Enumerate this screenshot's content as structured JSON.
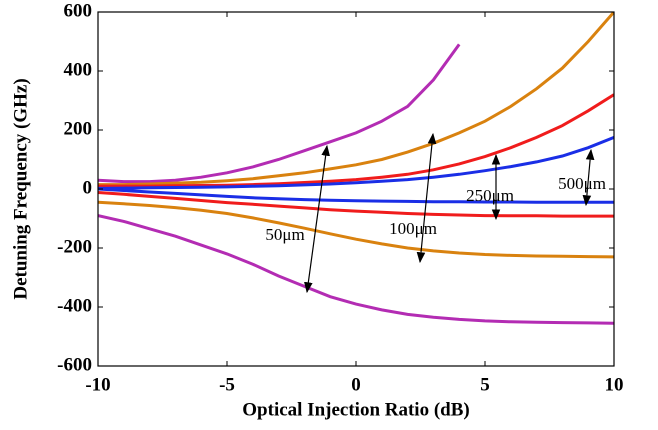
{
  "chart_data": {
    "type": "line",
    "xlabel": "Optical Injection Ratio (dB)",
    "ylabel": "Detuning Frequency (GHz)",
    "x": [
      -10,
      -9,
      -8,
      -7,
      -6,
      -5,
      -4,
      -3,
      -2,
      -1,
      0,
      1,
      2,
      3,
      4,
      5,
      6,
      7,
      8,
      9,
      10
    ],
    "xlim": [
      -10,
      10
    ],
    "xticks": [
      -10,
      -5,
      0,
      5,
      10
    ],
    "ylim": [
      -600,
      600
    ],
    "yticks": [
      -600,
      -400,
      -200,
      0,
      200,
      400,
      600
    ],
    "grid": false,
    "series": [
      {
        "color": "#b32cb3",
        "values": [
          30,
          25,
          25,
          30,
          40,
          55,
          75,
          100,
          130,
          160,
          190,
          230,
          280,
          370,
          490,
          null,
          null,
          null,
          null,
          null,
          null
        ]
      },
      {
        "color": "#d9820f",
        "values": [
          15,
          15,
          17,
          20,
          23,
          28,
          35,
          45,
          55,
          68,
          82,
          100,
          125,
          155,
          190,
          230,
          280,
          340,
          410,
          500,
          600
        ]
      },
      {
        "color": "#f01c1c",
        "values": [
          10,
          10,
          10,
          11,
          12,
          13,
          15,
          18,
          22,
          26,
          32,
          40,
          50,
          65,
          85,
          110,
          140,
          175,
          215,
          265,
          320
        ]
      },
      {
        "color": "#1a2ee6",
        "values": [
          2,
          3,
          4,
          5,
          6,
          7,
          9,
          11,
          14,
          17,
          21,
          26,
          32,
          40,
          50,
          62,
          76,
          92,
          112,
          140,
          175
        ]
      },
      {
        "color": "#1a2ee6",
        "values": [
          0,
          -5,
          -10,
          -15,
          -20,
          -25,
          -30,
          -33,
          -36,
          -38,
          -40,
          -41,
          -42,
          -43,
          -43,
          -44,
          -44,
          -45,
          -45,
          -45,
          -45
        ]
      },
      {
        "color": "#f01c1c",
        "values": [
          -12,
          -18,
          -25,
          -32,
          -39,
          -46,
          -52,
          -58,
          -64,
          -70,
          -75,
          -79,
          -83,
          -86,
          -88,
          -90,
          -91,
          -91,
          -92,
          -92,
          -92
        ]
      },
      {
        "color": "#d9820f",
        "values": [
          -45,
          -50,
          -56,
          -63,
          -72,
          -83,
          -98,
          -115,
          -133,
          -152,
          -170,
          -186,
          -200,
          -210,
          -217,
          -222,
          -225,
          -227,
          -228,
          -229,
          -230
        ]
      },
      {
        "color": "#b32cb3",
        "values": [
          -90,
          -110,
          -135,
          -160,
          -190,
          -220,
          -255,
          -295,
          -330,
          -365,
          -390,
          -410,
          -425,
          -435,
          -442,
          -447,
          -450,
          -452,
          -453,
          -454,
          -455
        ]
      }
    ],
    "annotations": [
      "50μm",
      "100μm",
      "250μm",
      "500μm"
    ]
  }
}
